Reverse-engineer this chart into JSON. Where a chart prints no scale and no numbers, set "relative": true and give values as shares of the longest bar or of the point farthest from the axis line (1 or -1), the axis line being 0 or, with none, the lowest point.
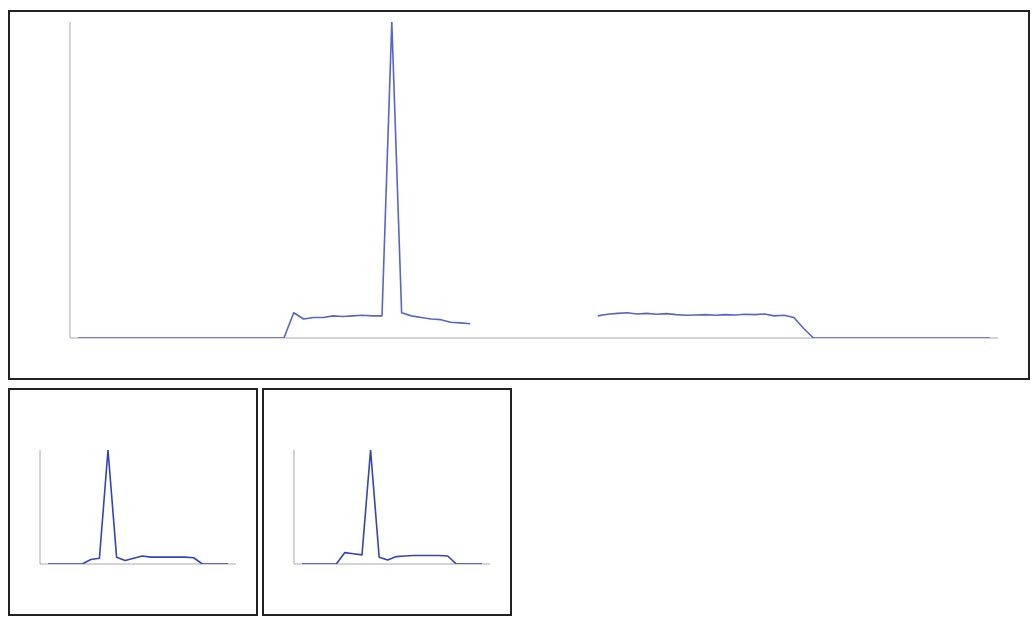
{
  "chart_data": [
    {
      "type": "line",
      "relative": true,
      "categories": [
        null,
        null,
        null,
        null,
        null,
        null,
        null,
        null,
        null,
        null,
        null,
        null,
        null,
        null,
        null,
        null,
        null,
        null,
        null,
        null,
        null,
        null,
        null,
        null,
        null,
        null,
        null,
        null,
        null,
        null,
        null,
        null,
        null,
        null,
        null,
        null,
        null,
        null,
        null,
        null,
        null,
        null,
        null,
        null,
        null,
        null,
        null,
        null,
        null,
        null,
        null,
        null,
        null,
        null,
        null,
        null,
        null,
        null,
        null,
        null,
        null,
        null,
        null,
        null,
        null,
        null,
        null,
        null,
        null,
        null,
        null,
        null,
        null,
        null,
        null,
        null,
        null,
        null,
        null,
        null,
        null,
        null,
        null,
        null,
        null,
        null,
        null,
        null,
        null,
        null,
        null,
        null,
        null,
        null
      ],
      "series": [
        {
          "color": "#5566c8",
          "values": [
            0,
            0,
            0,
            0,
            0,
            0,
            0,
            0,
            0,
            0,
            0,
            0,
            0,
            0,
            0,
            0,
            0,
            0,
            0,
            0,
            0,
            0,
            0.08,
            0.06,
            0.065,
            0.065,
            0.07,
            0.068,
            0.07,
            0.072,
            0.07,
            0.07,
            1.0,
            0.08,
            0.07,
            0.065,
            0.06,
            0.058,
            0.05,
            0.048,
            0.045,
            null,
            null,
            null,
            null,
            null,
            null,
            null,
            null,
            null,
            null,
            null,
            null,
            null,
            null,
            null,
            null,
            null,
            null,
            null,
            null,
            null,
            null,
            null,
            null,
            null,
            null,
            null,
            null,
            null,
            null,
            null,
            null,
            null,
            null,
            null,
            null,
            null,
            null,
            null,
            null,
            null,
            null,
            null,
            null,
            null,
            null,
            null,
            null,
            null,
            null,
            null,
            null,
            null
          ]
        },
        {
          "color": "#5566c8",
          "values": [
            null,
            null,
            null,
            null,
            null,
            null,
            null,
            null,
            null,
            null,
            null,
            null,
            null,
            null,
            null,
            null,
            null,
            null,
            null,
            null,
            null,
            null,
            null,
            null,
            null,
            null,
            null,
            null,
            null,
            null,
            null,
            null,
            null,
            null,
            null,
            null,
            null,
            null,
            null,
            null,
            null,
            null,
            null,
            null,
            null,
            null,
            null,
            null,
            null,
            null,
            null,
            null,
            null,
            0.07,
            0.075,
            0.078,
            0.08,
            0.076,
            0.078,
            0.075,
            0.077,
            0.074,
            0.072,
            0.073,
            0.074,
            0.072,
            0.074,
            0.073,
            0.075,
            0.074,
            0.076,
            0.07,
            0.072,
            0.065,
            0.03,
            0,
            0,
            0,
            0,
            0,
            0,
            0,
            0,
            0,
            0,
            0,
            0,
            0,
            0,
            0,
            0,
            0,
            0,
            0
          ]
        }
      ]
    },
    {
      "type": "line",
      "relative": true,
      "categories": [
        null,
        null,
        null,
        null,
        null,
        null,
        null,
        null,
        null,
        null,
        null,
        null,
        null,
        null,
        null,
        null,
        null,
        null,
        null,
        null,
        null,
        null
      ],
      "series": [
        {
          "color": "#3344b8",
          "values": [
            0,
            0,
            0,
            0,
            0,
            0.04,
            0.05,
            1.0,
            0.06,
            0.03,
            0.05,
            0.07,
            0.06,
            0.06,
            0.06,
            0.06,
            0.06,
            0.055,
            0,
            0,
            0,
            0
          ]
        }
      ]
    },
    {
      "type": "line",
      "relative": true,
      "categories": [
        null,
        null,
        null,
        null,
        null,
        null,
        null,
        null,
        null,
        null,
        null,
        null,
        null,
        null,
        null,
        null,
        null,
        null,
        null,
        null,
        null,
        null
      ],
      "series": [
        {
          "color": "#3344b8",
          "values": [
            0,
            0,
            0,
            0,
            0,
            0.1,
            0.09,
            0.08,
            1.0,
            0.06,
            0.035,
            0.065,
            0.07,
            0.075,
            0.075,
            0.075,
            0.075,
            0.07,
            0,
            0,
            0,
            0
          ]
        }
      ]
    }
  ]
}
